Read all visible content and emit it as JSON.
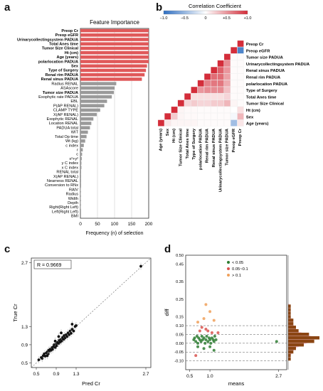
{
  "panels": {
    "a": "a",
    "b": "b",
    "c": "c",
    "d": "d"
  },
  "colors": {
    "red_bar": "#e0595a",
    "gray_bar": "#9a9a9a",
    "heat_neg": "#2f6fc2",
    "heat_pos": "#d42d3a",
    "pink_fill": "#f5b9d6",
    "brown_bar": "#8b4513",
    "green_pt": "#2e7d32",
    "red_pt": "#d9534f",
    "orange_pt": "#f0a05a"
  },
  "chart_data": [
    {
      "id": "a",
      "type": "bar",
      "orientation": "horizontal",
      "title": "Feature Importance",
      "xlabel": "Frequency (n) of selection",
      "xlim": [
        0,
        200
      ],
      "xticks": [
        "0",
        "50",
        "100",
        "150",
        "200"
      ],
      "grid": true,
      "categories": [
        "Preop Cr",
        "Preop eGFR",
        "Urinarycollectingsystem PADUA",
        "Total Anes time",
        "Tumor Size Clinical",
        "Ht (cm)",
        "Age (years)",
        "polarlocation PADUA",
        "Sex",
        "Type of Surgery",
        "Renal rim PADUA",
        "Renal sinus PADUA",
        "Radius RENAL",
        "ASAscore",
        "Tumor size PADUA",
        "Exophytic rate PADUA",
        "EBL",
        "P(AP RENAL)",
        "CLAMP TYPE",
        "X(AP RENAL)",
        "Exophytic RENAL",
        "Location RENAL",
        "PADUA total",
        "WIT",
        "Total Op time",
        "Wt (kg)",
        "c index",
        "r",
        "c",
        "x²+y²",
        "y C index",
        "x C index",
        "RENAL total",
        "X(AP RENAL)",
        "Nearness RENAL",
        "Conversion to RNx",
        "RAIV",
        "Radius",
        "Width",
        "Depth",
        "Right(Right Left)",
        "Left(Right Left)",
        "BMI"
      ],
      "bold": [
        true,
        true,
        true,
        true,
        true,
        true,
        true,
        true,
        true,
        true,
        true,
        true,
        false,
        false,
        true,
        false,
        false,
        false,
        false,
        false,
        false,
        false,
        false,
        false,
        false,
        false,
        false,
        false,
        false,
        false,
        false,
        false,
        false,
        false,
        false,
        false,
        false,
        false,
        false,
        false,
        false,
        false,
        false
      ],
      "values": [
        200,
        200,
        200,
        200,
        200,
        200,
        200,
        200,
        195,
        192,
        188,
        180,
        105,
        100,
        98,
        92,
        78,
        70,
        58,
        48,
        38,
        32,
        28,
        22,
        18,
        14,
        10,
        7,
        5,
        4,
        3,
        3,
        2,
        2,
        2,
        2,
        1,
        1,
        1,
        1,
        1,
        0,
        0
      ],
      "highlight_count": 12
    },
    {
      "id": "b",
      "type": "heatmap",
      "title": "Correlation Coefficient",
      "colorbar_ticks": [
        "−1.0",
        "−0.5",
        "0",
        "+0.5",
        "+1.0"
      ],
      "labels": [
        "Age (years)",
        "Sex",
        "Ht (cm)",
        "Tumor Size Clinical",
        "Total Anes time",
        "Type of Surgery",
        "polarlocation PADUA",
        "Renal rim PADUA",
        "Renal sinus PADUA",
        "Urinarycollectingsystem PADUA",
        "Tumor size PADUA",
        "Preop eGFR",
        "Preop Cr"
      ],
      "matrix": [
        [
          1.0,
          0.12,
          0.05,
          0.05,
          0.05,
          0.05,
          0.02,
          0.02,
          0.02,
          0.02,
          0.02,
          -0.45,
          0.12
        ],
        [
          0.12,
          1.0,
          0.25,
          0.05,
          0.03,
          0.03,
          0.02,
          0.02,
          0.02,
          0.02,
          0.02,
          -0.05,
          0.35
        ],
        [
          0.05,
          0.25,
          1.0,
          0.05,
          0.03,
          0.03,
          0.02,
          0.02,
          0.02,
          0.02,
          0.02,
          0.0,
          0.15
        ],
        [
          0.05,
          0.05,
          0.05,
          1.0,
          0.2,
          0.25,
          0.2,
          0.2,
          0.25,
          0.25,
          0.35,
          0.05,
          0.02
        ],
        [
          0.05,
          0.03,
          0.03,
          0.2,
          1.0,
          0.15,
          0.15,
          0.15,
          0.15,
          0.15,
          0.2,
          0.02,
          0.02
        ],
        [
          0.05,
          0.03,
          0.03,
          0.25,
          0.15,
          1.0,
          0.5,
          0.55,
          0.55,
          0.55,
          0.3,
          0.02,
          0.02
        ],
        [
          0.02,
          0.02,
          0.02,
          0.2,
          0.15,
          0.5,
          1.0,
          0.6,
          0.65,
          0.65,
          0.4,
          0.02,
          0.02
        ],
        [
          0.02,
          0.02,
          0.02,
          0.2,
          0.15,
          0.55,
          0.6,
          1.0,
          0.7,
          0.7,
          0.45,
          0.02,
          0.02
        ],
        [
          0.02,
          0.02,
          0.02,
          0.25,
          0.15,
          0.55,
          0.65,
          0.7,
          1.0,
          0.75,
          0.5,
          0.02,
          0.02
        ],
        [
          0.02,
          0.02,
          0.02,
          0.25,
          0.15,
          0.55,
          0.65,
          0.7,
          0.75,
          1.0,
          0.55,
          0.02,
          0.02
        ],
        [
          0.02,
          0.02,
          0.02,
          0.35,
          0.2,
          0.3,
          0.4,
          0.45,
          0.5,
          0.55,
          1.0,
          0.02,
          0.02
        ],
        [
          -0.45,
          -0.05,
          0.0,
          0.05,
          0.02,
          0.02,
          0.02,
          0.02,
          0.02,
          0.02,
          0.02,
          1.0,
          -0.85
        ],
        [
          0.12,
          0.35,
          0.15,
          0.02,
          0.02,
          0.02,
          0.02,
          0.02,
          0.02,
          0.02,
          0.02,
          -0.85,
          1.0
        ]
      ]
    },
    {
      "id": "c",
      "type": "scatter",
      "xlabel": "Pred Cr",
      "ylabel": "True Cr",
      "annotation": "R = 0.9669",
      "xlim": [
        0.4,
        2.8
      ],
      "ylim": [
        0.4,
        2.8
      ],
      "xticks": [
        "0.5",
        "0.9",
        "1.3",
        "2.7"
      ],
      "yticks": [
        "0.5",
        "0.9",
        "1.3",
        "2.7"
      ],
      "points": [
        [
          0.55,
          0.57
        ],
        [
          0.6,
          0.62
        ],
        [
          0.62,
          0.6
        ],
        [
          0.64,
          0.66
        ],
        [
          0.66,
          0.7
        ],
        [
          0.68,
          0.65
        ],
        [
          0.7,
          0.72
        ],
        [
          0.72,
          0.74
        ],
        [
          0.74,
          0.7
        ],
        [
          0.75,
          0.78
        ],
        [
          0.77,
          0.76
        ],
        [
          0.78,
          0.8
        ],
        [
          0.8,
          0.78
        ],
        [
          0.82,
          0.84
        ],
        [
          0.83,
          0.8
        ],
        [
          0.85,
          0.86
        ],
        [
          0.86,
          0.9
        ],
        [
          0.88,
          0.84
        ],
        [
          0.9,
          0.92
        ],
        [
          0.91,
          0.88
        ],
        [
          0.93,
          0.95
        ],
        [
          0.95,
          0.93
        ],
        [
          0.96,
          1.0
        ],
        [
          0.98,
          0.96
        ],
        [
          1.0,
          1.02
        ],
        [
          1.01,
          0.98
        ],
        [
          1.03,
          1.06
        ],
        [
          1.05,
          1.02
        ],
        [
          1.06,
          1.1
        ],
        [
          1.08,
          1.05
        ],
        [
          1.1,
          1.12
        ],
        [
          1.12,
          1.08
        ],
        [
          1.14,
          1.16
        ],
        [
          1.16,
          1.12
        ],
        [
          1.18,
          1.2
        ],
        [
          1.2,
          1.15
        ],
        [
          1.22,
          1.24
        ],
        [
          1.25,
          1.2
        ],
        [
          1.28,
          1.3
        ],
        [
          1.3,
          1.32
        ],
        [
          1.22,
          1.35
        ],
        [
          1.0,
          1.16
        ],
        [
          0.88,
          0.98
        ],
        [
          0.72,
          0.66
        ],
        [
          0.95,
          1.08
        ],
        [
          2.6,
          2.62
        ]
      ]
    },
    {
      "id": "d",
      "type": "scatter",
      "xlabel": "means",
      "ylabel": "diff",
      "xlim": [
        0.4,
        2.9
      ],
      "ylim": [
        -0.15,
        0.5
      ],
      "xticks": [
        "0.5",
        "1.0",
        "2.7"
      ],
      "yticks": [
        "0.50",
        "0.45",
        "0.35",
        "0.25",
        "0.15",
        "0.10",
        "0.05",
        "0.00",
        "-0.05",
        "-0.10"
      ],
      "legend": [
        {
          "label": "< 0.05",
          "color": "#2e7d32"
        },
        {
          "label": "0.05~0.1",
          "color": "#d9534f"
        },
        {
          "label": "> 0.1",
          "color": "#f0a05a"
        }
      ],
      "hlines": [
        0.1,
        0.05,
        0.0,
        -0.05,
        -0.1
      ],
      "points": [
        [
          0.6,
          0.02
        ],
        [
          0.62,
          0.03
        ],
        [
          0.65,
          0.01
        ],
        [
          0.68,
          0.04
        ],
        [
          0.7,
          0.0
        ],
        [
          0.72,
          0.03
        ],
        [
          0.75,
          0.02
        ],
        [
          0.78,
          0.01
        ],
        [
          0.8,
          0.04
        ],
        [
          0.82,
          0.02
        ],
        [
          0.85,
          0.03
        ],
        [
          0.88,
          0.0
        ],
        [
          0.9,
          0.02
        ],
        [
          0.92,
          0.04
        ],
        [
          0.95,
          0.01
        ],
        [
          0.98,
          0.03
        ],
        [
          1.0,
          0.02
        ],
        [
          1.02,
          0.0
        ],
        [
          1.05,
          0.03
        ],
        [
          1.08,
          0.02
        ],
        [
          1.1,
          0.01
        ],
        [
          1.12,
          0.04
        ],
        [
          1.15,
          0.02
        ],
        [
          0.7,
          -0.02
        ],
        [
          0.85,
          -0.03
        ],
        [
          1.0,
          -0.02
        ],
        [
          1.1,
          -0.04
        ],
        [
          0.75,
          0.07
        ],
        [
          0.9,
          0.08
        ],
        [
          1.05,
          0.06
        ],
        [
          0.8,
          0.09
        ],
        [
          0.95,
          0.07
        ],
        [
          1.2,
          0.06
        ],
        [
          0.7,
          0.12
        ],
        [
          0.85,
          0.14
        ],
        [
          1.0,
          0.18
        ],
        [
          0.9,
          0.22
        ],
        [
          1.1,
          0.13
        ],
        [
          0.65,
          -0.07
        ],
        [
          2.65,
          0.01
        ]
      ],
      "point_classes": [
        0,
        0,
        0,
        0,
        0,
        0,
        0,
        0,
        0,
        0,
        0,
        0,
        0,
        0,
        0,
        0,
        0,
        0,
        0,
        0,
        0,
        0,
        0,
        0,
        0,
        0,
        0,
        1,
        1,
        1,
        1,
        1,
        1,
        2,
        2,
        2,
        2,
        2,
        1,
        0
      ],
      "histogram_bins": [
        -0.1,
        -0.08,
        -0.06,
        -0.04,
        -0.02,
        0.0,
        0.02,
        0.04,
        0.06,
        0.08,
        0.1,
        0.12,
        0.14,
        0.16,
        0.18,
        0.2,
        0.22
      ],
      "histogram_counts": [
        1,
        1,
        2,
        3,
        6,
        10,
        12,
        8,
        4,
        3,
        2,
        2,
        1,
        1,
        1,
        1,
        0
      ]
    }
  ]
}
